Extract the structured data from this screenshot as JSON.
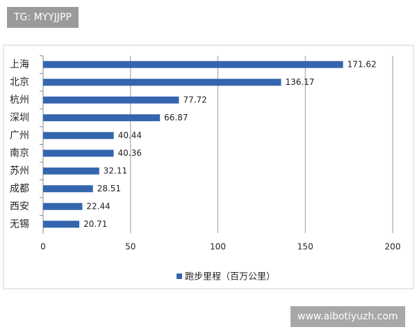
{
  "chart_data": {
    "type": "bar",
    "orientation": "horizontal",
    "categories": [
      "上海",
      "北京",
      "杭州",
      "深圳",
      "广州",
      "南京",
      "苏州",
      "成都",
      "西安",
      "无锡"
    ],
    "series": [
      {
        "name": "跑步里程（百万公里）",
        "color": "#3565ae",
        "values": [
          171.62,
          136.17,
          77.72,
          66.87,
          40.44,
          40.36,
          32.11,
          28.51,
          22.44,
          20.71
        ]
      }
    ],
    "xlim": [
      0,
      200
    ],
    "xticks": [
      0,
      50,
      100,
      150,
      200
    ],
    "grid": true,
    "legend": "bottom"
  },
  "watermarks": {
    "top_left": "TG: MYYJJPP",
    "bottom_right": "www.aibotiyuzh.com"
  }
}
